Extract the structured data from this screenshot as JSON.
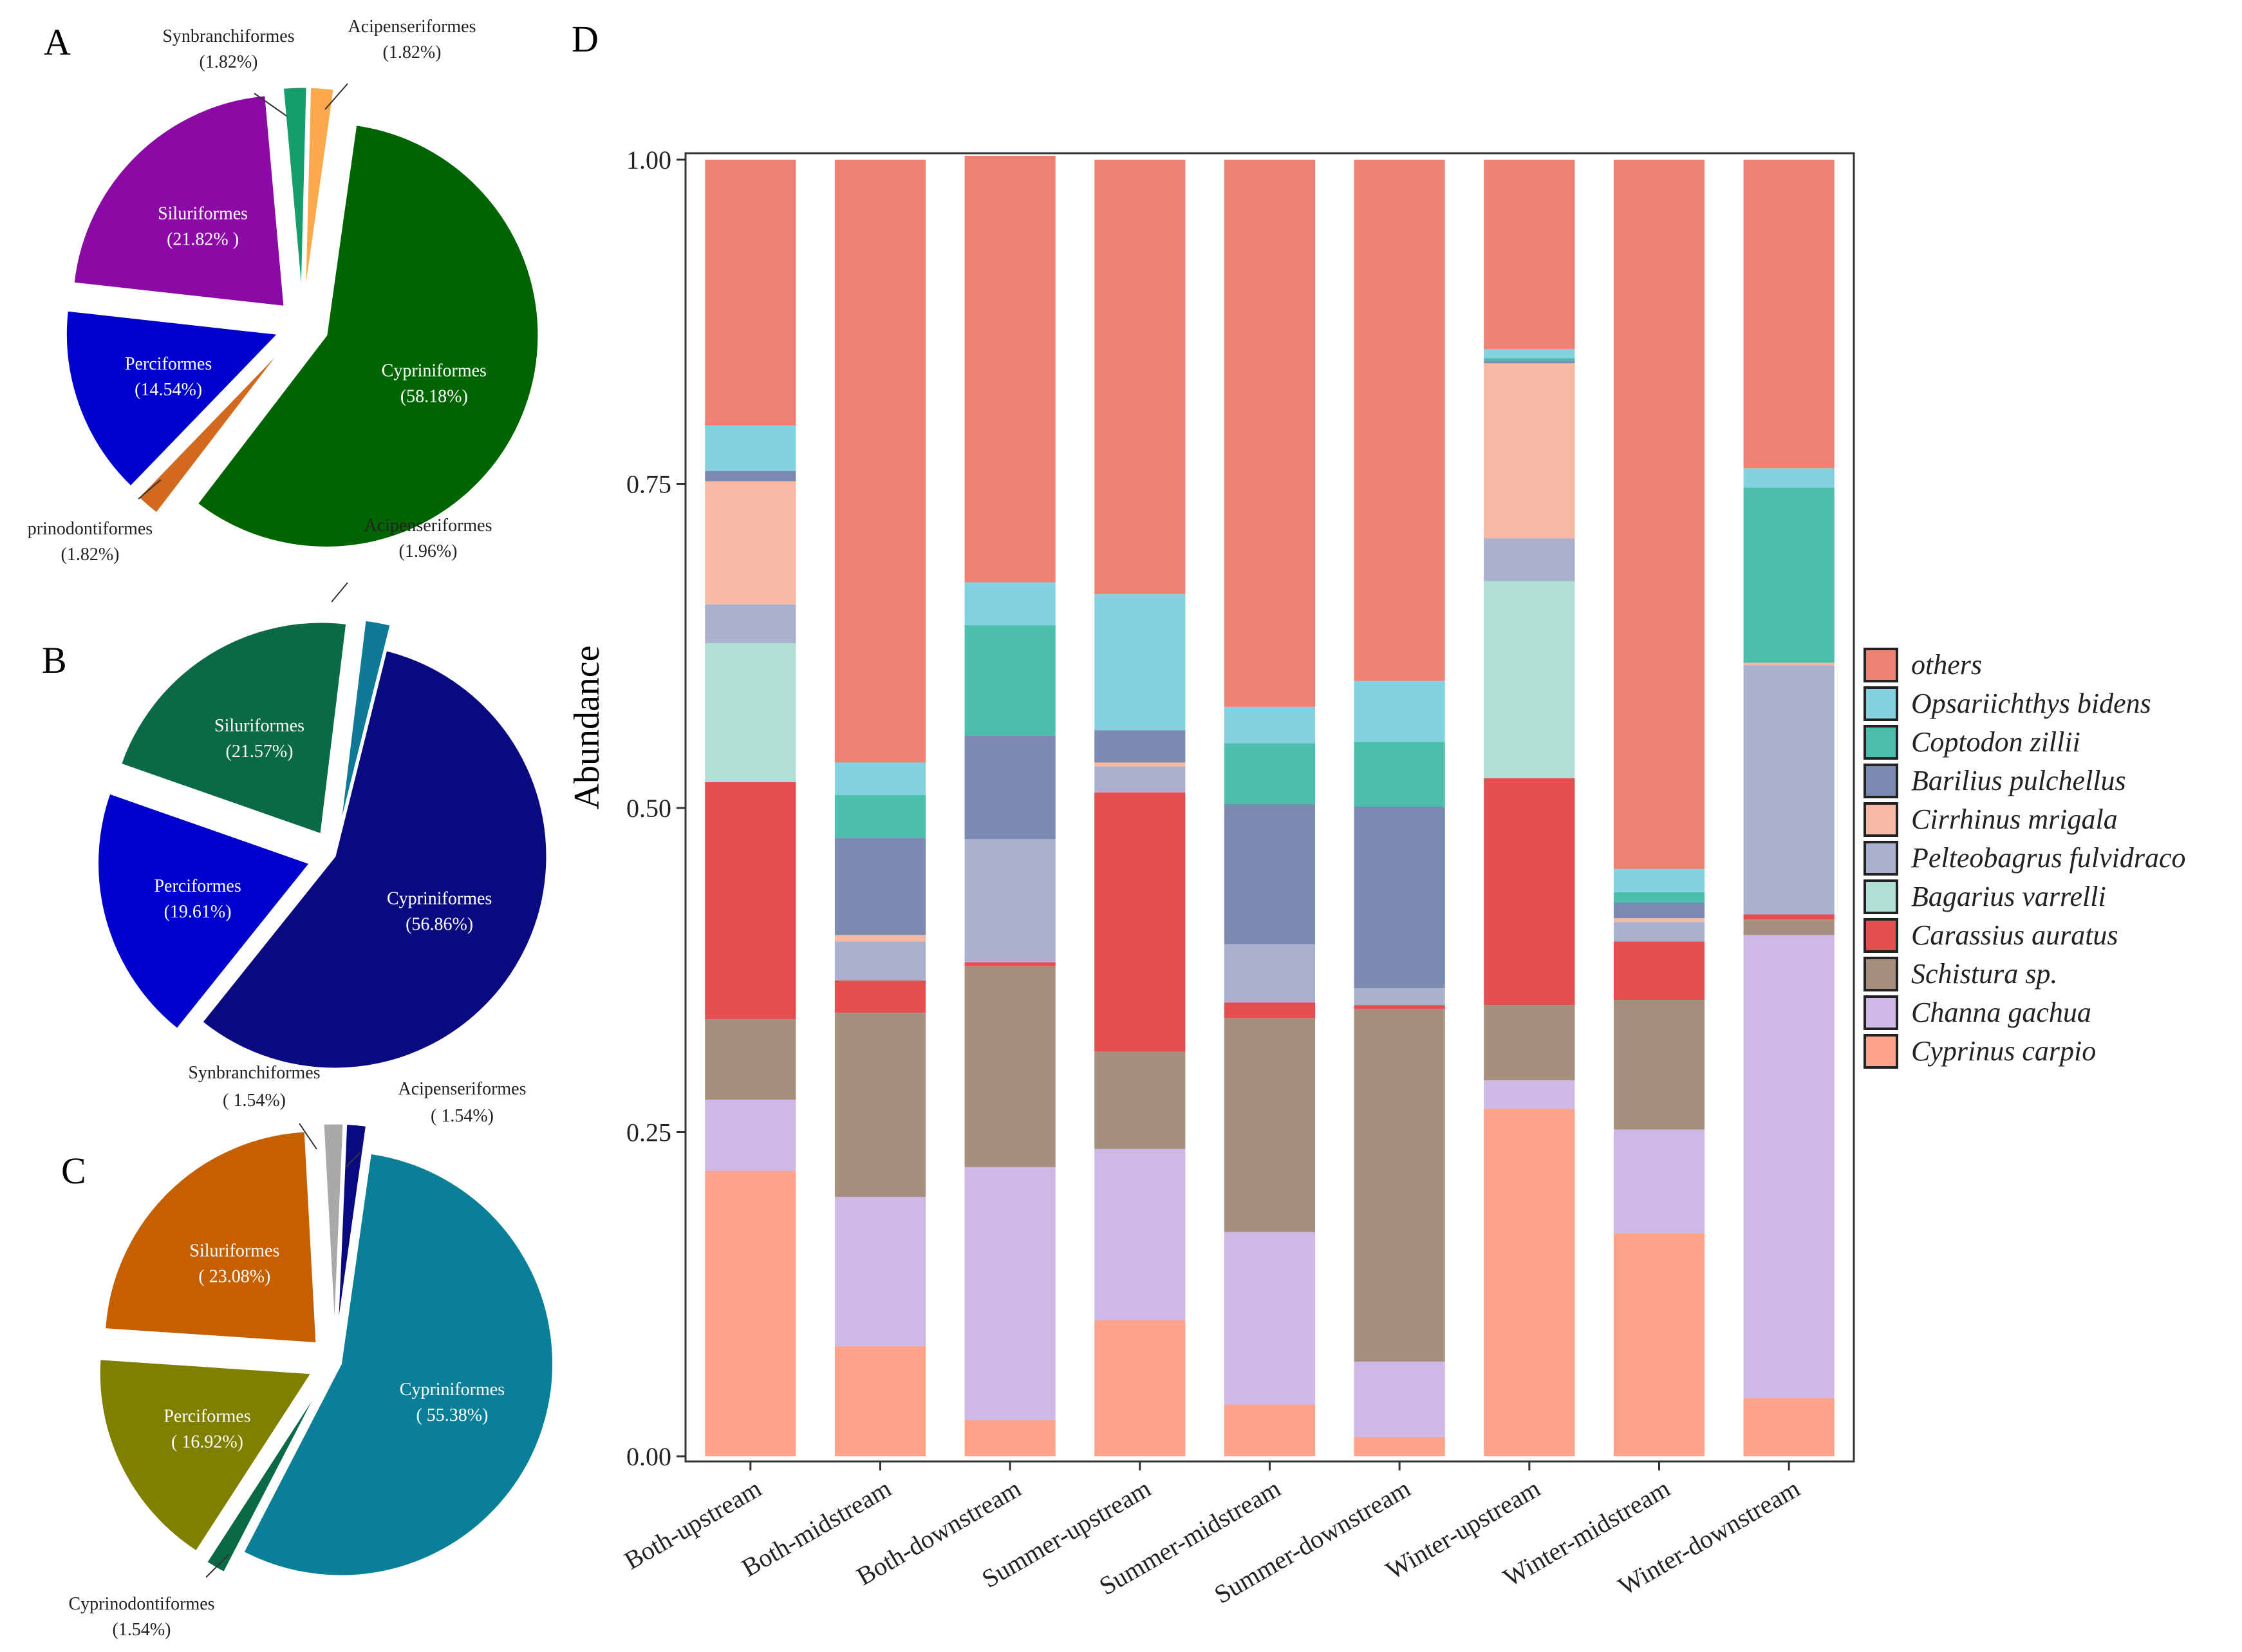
{
  "figure": {
    "panel_letters": [
      "A",
      "B",
      "C",
      "D"
    ]
  },
  "chart_data": [
    {
      "type": "pie",
      "panel": "A",
      "slices": [
        {
          "label": "Cypriniformes",
          "pct_text": "(58.18%)",
          "value": 58.18,
          "color": "#006400",
          "label_inside": true
        },
        {
          "label": "prinodontiformes",
          "pct_text": "(1.82%)",
          "value": 1.82,
          "color": "#D2691E",
          "label_inside": false
        },
        {
          "label": "Perciformes",
          "pct_text": "(14.54%)",
          "value": 14.54,
          "color": "#0000CD",
          "label_inside": true
        },
        {
          "label": "Siluriformes",
          "pct_text": "(21.82%  )",
          "value": 21.82,
          "color": "#8B0AA5",
          "label_inside": true
        },
        {
          "label": "Synbranchiformes",
          "pct_text": "(1.82%)",
          "value": 1.82,
          "color": "#159E6A",
          "label_inside": false
        },
        {
          "label": "Acipenseriformes",
          "pct_text": "(1.82%)",
          "value": 1.82,
          "color": "#FBA94A",
          "label_inside": false
        }
      ]
    },
    {
      "type": "pie",
      "panel": "B",
      "slices": [
        {
          "label": "Cypriniformes",
          "pct_text": "(56.86%)",
          "value": 56.86,
          "color": "#0A0A80",
          "label_inside": true
        },
        {
          "label": "Perciformes",
          "pct_text": "(19.61%)",
          "value": 19.61,
          "color": "#0000CD",
          "label_inside": true
        },
        {
          "label": "Siluriformes",
          "pct_text": "(21.57%)",
          "value": 21.57,
          "color": "#0B6A46",
          "label_inside": true
        },
        {
          "label": "Acipenseriformes",
          "pct_text": "(1.96%)",
          "value": 1.96,
          "color": "#0E7A95",
          "label_inside": false
        }
      ]
    },
    {
      "type": "pie",
      "panel": "C",
      "slices": [
        {
          "label": "Cypriniformes",
          "pct_text": "( 55.38%)",
          "value": 55.38,
          "color": "#0A8098",
          "label_inside": true
        },
        {
          "label": "Cyprinodontiformes",
          "pct_text": "(1.54%)",
          "value": 1.54,
          "color": "#0B6A46",
          "label_inside": false
        },
        {
          "label": "Perciformes",
          "pct_text": "( 16.92%)",
          "value": 16.92,
          "color": "#808000",
          "label_inside": true
        },
        {
          "label": "Siluriformes",
          "pct_text": "( 23.08%)",
          "value": 23.08,
          "color": "#C55F00",
          "label_inside": true
        },
        {
          "label": "Synbranchiformes",
          "pct_text": "(  1.54%)",
          "value": 1.54,
          "color": "#A9A9A9",
          "label_inside": false
        },
        {
          "label": "Acipenseriformes",
          "pct_text": "(  1.54%)",
          "value": 1.54,
          "color": "#0A0A80",
          "label_inside": false
        }
      ]
    },
    {
      "type": "bar",
      "stacked": true,
      "panel": "D",
      "ylabel": "Abundance",
      "xlabel": "",
      "ylim": [
        0,
        1
      ],
      "yticks": [
        "0.00",
        "0.25",
        "0.50",
        "0.75",
        "1.00"
      ],
      "categories": [
        "Both-upstream",
        "Both-midstream",
        "Both-downstream",
        "Summer-upstream",
        "Summer-midstream",
        "Summer-downstream",
        "Winter-upstream",
        "Winter-midstream",
        "Winter-downstream"
      ],
      "series": [
        {
          "name": "Cyprinus carpio",
          "color": "#FCA38A",
          "values": [
            0.22,
            0.085,
            0.028,
            0.105,
            0.04,
            0.015,
            0.268,
            0.172,
            0.045
          ]
        },
        {
          "name": "Channa gachua",
          "color": "#CDB8E6",
          "values": [
            0.055,
            0.115,
            0.195,
            0.132,
            0.133,
            0.058,
            0.022,
            0.08,
            0.357
          ]
        },
        {
          "name": "Schistura sp.",
          "color": "#A5907D",
          "values": [
            0.062,
            0.142,
            0.155,
            0.075,
            0.165,
            0.272,
            0.058,
            0.1,
            0.012
          ]
        },
        {
          "name": "Carassius auratus",
          "color": "#E64D4E",
          "values": [
            0.183,
            0.025,
            0.003,
            0.2,
            0.012,
            0.003,
            0.175,
            0.045,
            0.004
          ]
        },
        {
          "name": "Bagarius varrelli",
          "color": "#B0E0D5",
          "values": [
            0.107,
            0.0,
            0.0,
            0.0,
            0.0,
            0.0,
            0.152,
            0.0,
            0.0
          ]
        },
        {
          "name": "Pelteobagrus fulvidraco",
          "color": "#A9B1CE",
          "values": [
            0.03,
            0.03,
            0.095,
            0.02,
            0.045,
            0.013,
            0.033,
            0.015,
            0.192
          ]
        },
        {
          "name": "Cirrhinus mrigala",
          "color": "#F7B8A4",
          "values": [
            0.095,
            0.005,
            0.0,
            0.003,
            0.0,
            0.0,
            0.135,
            0.003,
            0.002
          ]
        },
        {
          "name": "Barilius pulchellus",
          "color": "#7A8AB0",
          "values": [
            0.008,
            0.075,
            0.08,
            0.025,
            0.108,
            0.14,
            0.002,
            0.012,
            0.0
          ]
        },
        {
          "name": "Coptodon zillii",
          "color": "#4BBEAC",
          "values": [
            0.0,
            0.033,
            0.085,
            0.0,
            0.047,
            0.05,
            0.002,
            0.008,
            0.135
          ]
        },
        {
          "name": "Opsariichthys bidens",
          "color": "#84D1E2",
          "values": [
            0.035,
            0.025,
            0.033,
            0.105,
            0.028,
            0.047,
            0.007,
            0.018,
            0.015
          ]
        },
        {
          "name": "others",
          "color": "#EF8173",
          "values": [
            0.205,
            0.465,
            0.329,
            0.335,
            0.422,
            0.402,
            0.146,
            0.547,
            0.238
          ]
        }
      ],
      "legend": [
        "others",
        "Opsariichthys bidens",
        "Coptodon zillii",
        "Barilius pulchellus",
        "Cirrhinus mrigala",
        "Pelteobagrus fulvidraco",
        "Bagarius varrelli",
        "Carassius auratus",
        "Schistura sp.",
        "Channa gachua",
        "Cyprinus carpio"
      ],
      "legend_position": "right"
    }
  ]
}
